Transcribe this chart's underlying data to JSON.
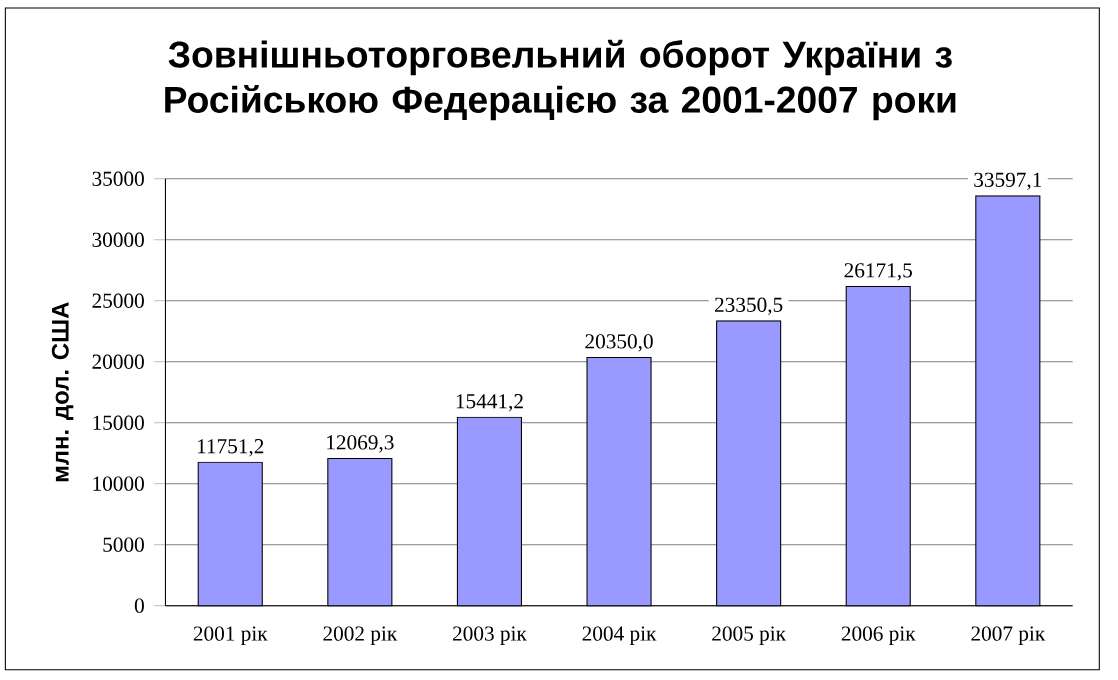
{
  "chart_data": {
    "type": "bar",
    "title": "Зовнішньоторговельний оборот України з Російською Федерацією за 2001-2007 роки",
    "ylabel": "млн. дол. США",
    "categories": [
      "2001 рік",
      "2002 рік",
      "2003 рік",
      "2004 рік",
      "2005 рік",
      "2006 рік",
      "2007 рік"
    ],
    "values": [
      11751.2,
      12069.3,
      15441.2,
      20350.0,
      23350.5,
      26171.5,
      33597.1
    ],
    "value_labels": [
      "11751,2",
      "12069,3",
      "15441,2",
      "20350,0",
      "23350,5",
      "26171,5",
      "33597,1"
    ],
    "color": "#9999ff",
    "ylim": [
      0,
      35000
    ],
    "yticks": [
      0,
      5000,
      10000,
      15000,
      20000,
      25000,
      30000,
      35000
    ],
    "grid": "y"
  }
}
